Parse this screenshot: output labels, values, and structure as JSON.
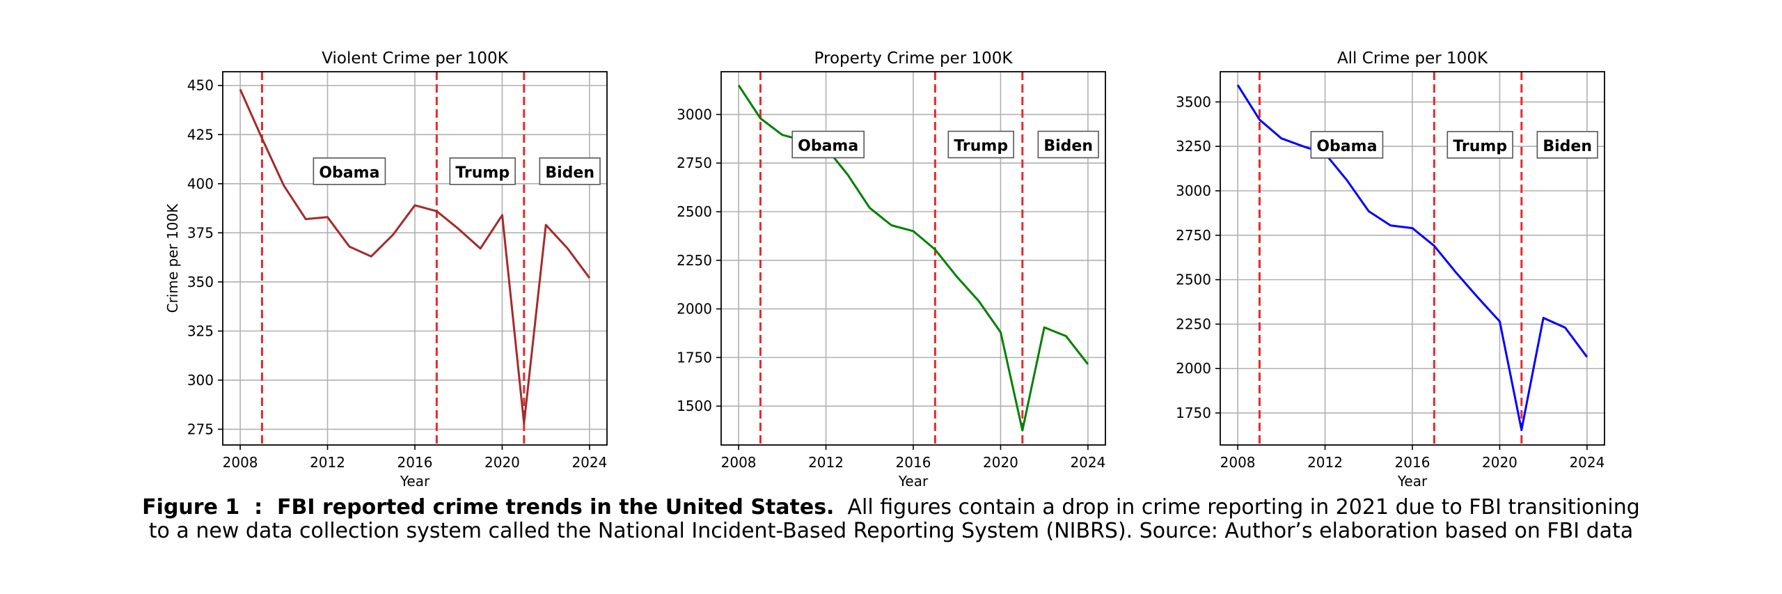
{
  "chart_data": [
    {
      "type": "line",
      "title": "Violent Crime per 100K",
      "xlabel": "Year",
      "ylabel": "Crime per 100K",
      "color": "#a52a2a",
      "x": [
        2008,
        2009,
        2010,
        2011,
        2012,
        2013,
        2014,
        2015,
        2016,
        2017,
        2018,
        2019,
        2020,
        2021,
        2022,
        2023,
        2024
      ],
      "values": [
        448,
        423,
        399,
        382,
        383,
        368,
        363,
        374,
        389,
        386,
        377,
        367,
        384,
        278,
        379,
        367,
        352
      ],
      "xlim": [
        2007.2,
        2024.8
      ],
      "ylim": [
        267,
        457
      ],
      "xticks": [
        "2008",
        "2012",
        "2016",
        "2020",
        "2024"
      ],
      "yticks": [
        "275",
        "300",
        "325",
        "350",
        "375",
        "400",
        "425",
        "450"
      ],
      "transitions": [
        2009,
        2017,
        2021
      ],
      "annotations": [
        {
          "text": "Obama",
          "x": 2013,
          "y": 406
        },
        {
          "text": "Trump",
          "x": 2019.1,
          "y": 406
        },
        {
          "text": "Biden",
          "x": 2023.1,
          "y": 406
        }
      ]
    },
    {
      "type": "line",
      "title": "Property Crime per 100K",
      "xlabel": "Year",
      "ylabel": "",
      "color": "#008000",
      "x": [
        2008,
        2009,
        2010,
        2011,
        2012,
        2013,
        2014,
        2015,
        2016,
        2017,
        2018,
        2019,
        2020,
        2021,
        2022,
        2023,
        2024
      ],
      "values": [
        3150,
        2980,
        2895,
        2865,
        2830,
        2690,
        2520,
        2430,
        2400,
        2305,
        2165,
        2040,
        1880,
        1375,
        1905,
        1860,
        1715
      ],
      "xlim": [
        2007.2,
        2024.8
      ],
      "ylim": [
        1300,
        3220
      ],
      "xticks": [
        "2008",
        "2012",
        "2016",
        "2020",
        "2024"
      ],
      "yticks": [
        "1500",
        "1750",
        "2000",
        "2250",
        "2500",
        "2750",
        "3000"
      ],
      "transitions": [
        2009,
        2017,
        2021
      ],
      "annotations": [
        {
          "text": "Obama",
          "x": 2012.1,
          "y": 2842
        },
        {
          "text": "Trump",
          "x": 2019.1,
          "y": 2842
        },
        {
          "text": "Biden",
          "x": 2023.1,
          "y": 2842
        }
      ]
    },
    {
      "type": "line",
      "title": "All Crime per 100K",
      "xlabel": "Year",
      "ylabel": "",
      "color": "#0000ff",
      "x": [
        2008,
        2009,
        2010,
        2011,
        2012,
        2013,
        2014,
        2015,
        2016,
        2017,
        2018,
        2019,
        2020,
        2021,
        2022,
        2023,
        2024
      ],
      "values": [
        3595,
        3400,
        3295,
        3250,
        3210,
        3060,
        2885,
        2805,
        2790,
        2690,
        2540,
        2400,
        2265,
        1655,
        2285,
        2230,
        2065
      ],
      "xlim": [
        2007.2,
        2024.8
      ],
      "ylim": [
        1570,
        3670
      ],
      "xticks": [
        "2008",
        "2012",
        "2016",
        "2020",
        "2024"
      ],
      "yticks": [
        "1750",
        "2000",
        "2250",
        "2500",
        "2750",
        "3000",
        "3250",
        "3500"
      ],
      "transitions": [
        2009,
        2017,
        2021
      ],
      "annotations": [
        {
          "text": "Obama",
          "x": 2013,
          "y": 3255
        },
        {
          "text": "Trump",
          "x": 2019.1,
          "y": 3255
        },
        {
          "text": "Biden",
          "x": 2023.1,
          "y": 3255
        }
      ]
    }
  ],
  "caption": {
    "label": "Figure 1  :  FBI reported crime trends in the United States.",
    "text_line1": "All figures contain a drop in crime reporting in 2021 due to FBI transitioning",
    "text_line2": "to a new data collection system called the National Incident-Based Reporting System (NIBRS). Source: Author’s elaboration based on FBI data"
  },
  "style": {
    "transition_color": "#e8292b",
    "grid_color": "#b0b0b0"
  }
}
